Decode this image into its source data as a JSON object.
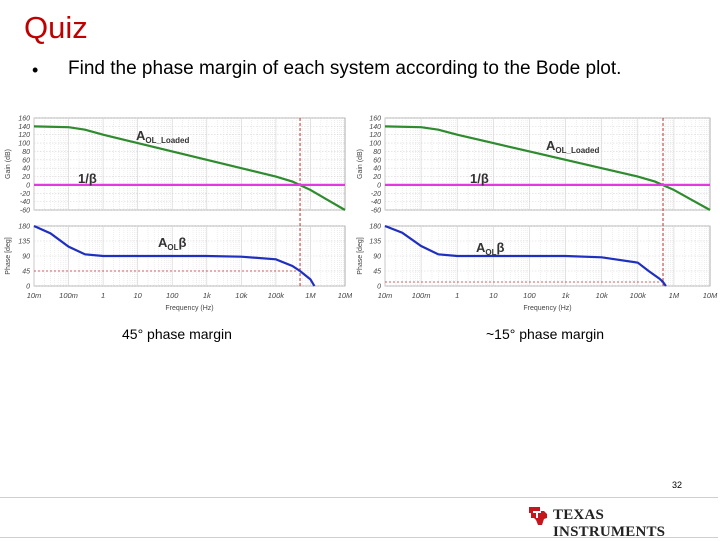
{
  "slide": {
    "title": "Quiz",
    "bullet_marker": "•",
    "bullet_text": "Find the phase margin of each system according to the Bode plot.",
    "page_number": "32",
    "logo_text": "Texas Instruments"
  },
  "colors": {
    "title": "#c00000",
    "aol_loaded": "#2e8b2e",
    "aol_beta": "#1f2fbf",
    "inv_beta": "#e23ae0",
    "marker": "#c0302a",
    "grid": "#d6d6d6"
  },
  "chart_data": [
    {
      "type": "line",
      "caption": "45° phase margin",
      "xlabel": "Frequency (Hz)",
      "x_scale": "log",
      "xlim": [
        0.01,
        10000000
      ],
      "x_ticks": [
        0.01,
        0.1,
        1,
        10,
        100,
        1000,
        10000,
        100000,
        1000000,
        10000000
      ],
      "x_tick_labels": [
        "10m",
        "100m",
        "1",
        "10",
        "100",
        "1k",
        "10k",
        "100k",
        "1M",
        "10M"
      ],
      "gain": {
        "ylabel": "Gain (dB)",
        "ylim": [
          -60,
          160
        ],
        "y_ticks": [
          160,
          140,
          120,
          100,
          80,
          60,
          40,
          20,
          0,
          -20,
          -40,
          -60
        ],
        "y_tick_labels": [
          "160",
          "140",
          "120",
          "100",
          "80",
          "60",
          "40",
          "20",
          "0",
          "-20",
          "-40",
          "-60"
        ],
        "series": [
          {
            "name": "AOL_Loaded",
            "label_main": "A",
            "label_sub": "OL_Loaded",
            "color": "#2e8b2e",
            "x": [
              0.01,
              0.1,
              0.3,
              1,
              10,
              100,
              1000,
              10000,
              100000,
              300000,
              1000000,
              3000000,
              10000000
            ],
            "y": [
              140,
              138,
              132,
              120,
              100,
              80,
              60,
              40,
              20,
              8,
              -12,
              -35,
              -60
            ]
          },
          {
            "name": "1/β",
            "label_main": "1/β",
            "label_sub": "",
            "color": "#e23ae0",
            "x": [
              0.01,
              10000000
            ],
            "y": [
              0,
              0
            ]
          }
        ]
      },
      "phase": {
        "ylabel": "Phase [deg]",
        "ylim": [
          0,
          180
        ],
        "y_ticks": [
          180,
          135,
          90,
          45,
          0
        ],
        "y_tick_labels": [
          "180",
          "135",
          "90",
          "45",
          "0"
        ],
        "series": [
          {
            "name": "AOLβ",
            "label_main": "A",
            "label_sub": "OL",
            "label_tail": "β",
            "color": "#1f2fbf",
            "x": [
              0.01,
              0.03,
              0.1,
              0.3,
              1,
              10,
              100,
              1000,
              10000,
              100000,
              300000,
              500000,
              1000000,
              1300000
            ],
            "y": [
              180,
              158,
              118,
              95,
              90,
              90,
              90,
              90,
              88,
              80,
              60,
              45,
              20,
              0
            ]
          }
        ]
      },
      "marker_frequency": 500000,
      "marker_phase": 45
    },
    {
      "type": "line",
      "caption": "~15° phase margin",
      "xlabel": "Frequency (Hz)",
      "x_scale": "log",
      "xlim": [
        0.01,
        10000000
      ],
      "x_ticks": [
        0.01,
        0.1,
        1,
        10,
        100,
        1000,
        10000,
        100000,
        1000000,
        10000000
      ],
      "x_tick_labels": [
        "10m",
        "100m",
        "1",
        "10",
        "100",
        "1k",
        "10k",
        "100k",
        "1M",
        "10M"
      ],
      "gain": {
        "ylabel": "Gain (dB)",
        "ylim": [
          -60,
          160
        ],
        "y_ticks": [
          160,
          140,
          120,
          100,
          80,
          60,
          40,
          20,
          0,
          -20,
          -40,
          -60
        ],
        "y_tick_labels": [
          "160",
          "140",
          "120",
          "100",
          "80",
          "60",
          "40",
          "20",
          "0",
          "-20",
          "-40",
          "-60"
        ],
        "series": [
          {
            "name": "AOL_Loaded",
            "label_main": "A",
            "label_sub": "OL_Loaded",
            "color": "#2e8b2e",
            "x": [
              0.01,
              0.1,
              0.3,
              1,
              10,
              100,
              1000,
              10000,
              100000,
              300000,
              1000000,
              3000000,
              10000000
            ],
            "y": [
              140,
              138,
              132,
              120,
              100,
              80,
              60,
              40,
              20,
              8,
              -12,
              -35,
              -60
            ]
          },
          {
            "name": "1/β",
            "label_main": "1/β",
            "label_sub": "",
            "color": "#e23ae0",
            "x": [
              0.01,
              10000000
            ],
            "y": [
              0,
              0
            ]
          }
        ]
      },
      "phase": {
        "ylabel": "Phase [deg]",
        "ylim": [
          0,
          180
        ],
        "y_ticks": [
          180,
          135,
          90,
          45,
          0
        ],
        "y_tick_labels": [
          "180",
          "135",
          "90",
          "45",
          "0"
        ],
        "series": [
          {
            "name": "AOLβ",
            "label_main": "A",
            "label_sub": "OL",
            "label_tail": "β",
            "color": "#1f2fbf",
            "x": [
              0.01,
              0.03,
              0.1,
              0.3,
              1,
              10,
              100,
              1000,
              10000,
              100000,
              200000,
              400000,
              500000,
              600000
            ],
            "y": [
              180,
              160,
              120,
              95,
              90,
              90,
              90,
              90,
              86,
              70,
              45,
              22,
              12,
              0
            ]
          }
        ]
      },
      "marker_frequency": 500000,
      "marker_phase": 12
    }
  ]
}
